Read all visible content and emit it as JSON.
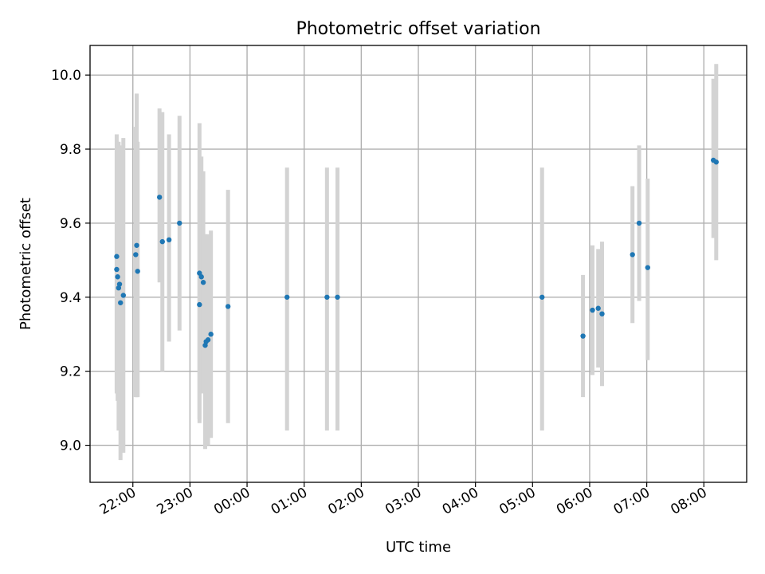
{
  "chart_data": {
    "type": "scatter",
    "title": "Photometric offset variation",
    "xlabel": "UTC time",
    "ylabel": "Photometric offset",
    "ylim": [
      8.9,
      10.08
    ],
    "yticks": [
      9.0,
      9.2,
      9.4,
      9.6,
      9.8,
      10.0
    ],
    "xlim": [
      "21:15",
      "08:45"
    ],
    "xticks": [
      "22:00",
      "23:00",
      "00:00",
      "01:00",
      "02:00",
      "03:00",
      "04:00",
      "05:00",
      "06:00",
      "07:00",
      "08:00"
    ],
    "grid": true,
    "colors": {
      "point": "#1f77b4",
      "errorbar": "#d3d3d3"
    },
    "series": [
      {
        "points": [
          {
            "x": "21:43",
            "y": 9.51,
            "lo": 9.14,
            "hi": 9.84
          },
          {
            "x": "21:43",
            "y": 9.475,
            "lo": 9.15,
            "hi": 9.8
          },
          {
            "x": "21:44",
            "y": 9.455,
            "lo": 9.12,
            "hi": 9.8
          },
          {
            "x": "21:45",
            "y": 9.425,
            "lo": 9.04,
            "hi": 9.82
          },
          {
            "x": "21:46",
            "y": 9.435,
            "lo": 9.07,
            "hi": 9.81
          },
          {
            "x": "21:47",
            "y": 9.385,
            "lo": 8.96,
            "hi": 9.8
          },
          {
            "x": "21:50",
            "y": 9.405,
            "lo": 8.98,
            "hi": 9.83
          },
          {
            "x": "22:03",
            "y": 9.515,
            "lo": 9.13,
            "hi": 9.86
          },
          {
            "x": "22:04",
            "y": 9.54,
            "lo": 9.13,
            "hi": 9.95
          },
          {
            "x": "22:05",
            "y": 9.47,
            "lo": 9.13,
            "hi": 9.82
          },
          {
            "x": "22:28",
            "y": 9.67,
            "lo": 9.44,
            "hi": 9.91
          },
          {
            "x": "22:31",
            "y": 9.55,
            "lo": 9.2,
            "hi": 9.9
          },
          {
            "x": "22:38",
            "y": 9.555,
            "lo": 9.28,
            "hi": 9.84
          },
          {
            "x": "22:49",
            "y": 9.6,
            "lo": 9.31,
            "hi": 9.89
          },
          {
            "x": "23:10",
            "y": 9.38,
            "lo": 9.06,
            "hi": 9.69
          },
          {
            "x": "23:10",
            "y": 9.465,
            "lo": 9.07,
            "hi": 9.87
          },
          {
            "x": "23:12",
            "y": 9.455,
            "lo": 9.14,
            "hi": 9.78
          },
          {
            "x": "23:14",
            "y": 9.44,
            "lo": 9.14,
            "hi": 9.74
          },
          {
            "x": "23:16",
            "y": 9.27,
            "lo": 8.99,
            "hi": 9.57
          },
          {
            "x": "23:17",
            "y": 9.28,
            "lo": 9.0,
            "hi": 9.57
          },
          {
            "x": "23:19",
            "y": 9.285,
            "lo": 9.0,
            "hi": 9.57
          },
          {
            "x": "23:22",
            "y": 9.3,
            "lo": 9.02,
            "hi": 9.58
          },
          {
            "x": "23:40",
            "y": 9.375,
            "lo": 9.06,
            "hi": 9.69
          },
          {
            "x": "00:42",
            "y": 9.4,
            "lo": 9.04,
            "hi": 9.75
          },
          {
            "x": "01:24",
            "y": 9.4,
            "lo": 9.04,
            "hi": 9.75
          },
          {
            "x": "01:35",
            "y": 9.4,
            "lo": 9.04,
            "hi": 9.75
          },
          {
            "x": "05:10",
            "y": 9.4,
            "lo": 9.04,
            "hi": 9.75
          },
          {
            "x": "05:53",
            "y": 9.295,
            "lo": 9.13,
            "hi": 9.46
          },
          {
            "x": "06:03",
            "y": 9.365,
            "lo": 9.19,
            "hi": 9.54
          },
          {
            "x": "06:09",
            "y": 9.37,
            "lo": 9.21,
            "hi": 9.53
          },
          {
            "x": "06:13",
            "y": 9.355,
            "lo": 9.16,
            "hi": 9.55
          },
          {
            "x": "06:45",
            "y": 9.515,
            "lo": 9.33,
            "hi": 9.7
          },
          {
            "x": "06:52",
            "y": 9.6,
            "lo": 9.39,
            "hi": 9.81
          },
          {
            "x": "07:01",
            "y": 9.48,
            "lo": 9.23,
            "hi": 9.72
          },
          {
            "x": "08:10",
            "y": 9.77,
            "lo": 9.56,
            "hi": 9.99
          },
          {
            "x": "08:13",
            "y": 9.765,
            "lo": 9.5,
            "hi": 10.03
          }
        ]
      }
    ]
  }
}
